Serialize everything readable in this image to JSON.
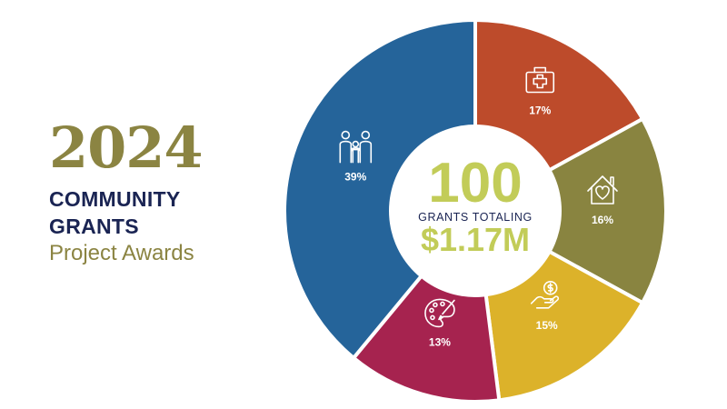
{
  "header": {
    "year": "2024",
    "heading_line1": "COMMUNITY",
    "heading_line2": "GRANTS",
    "subtitle": "Project Awards"
  },
  "center": {
    "count": "100",
    "caption": "GRANTS TOTALING",
    "total": "$1.17M"
  },
  "chart_data": {
    "type": "pie",
    "variant": "donut",
    "categories": [
      "health-icon",
      "home-heart-icon",
      "money-hand-icon",
      "art-palette-icon",
      "family-icon"
    ],
    "values": [
      17,
      16,
      15,
      13,
      39
    ],
    "labels": [
      "17%",
      "16%",
      "15%",
      "13%",
      "39%"
    ],
    "colors": [
      "#bd4b2b",
      "#898440",
      "#dcb22a",
      "#a6234f",
      "#25649a"
    ],
    "start_angle_deg": 0,
    "direction": "clockwise"
  }
}
